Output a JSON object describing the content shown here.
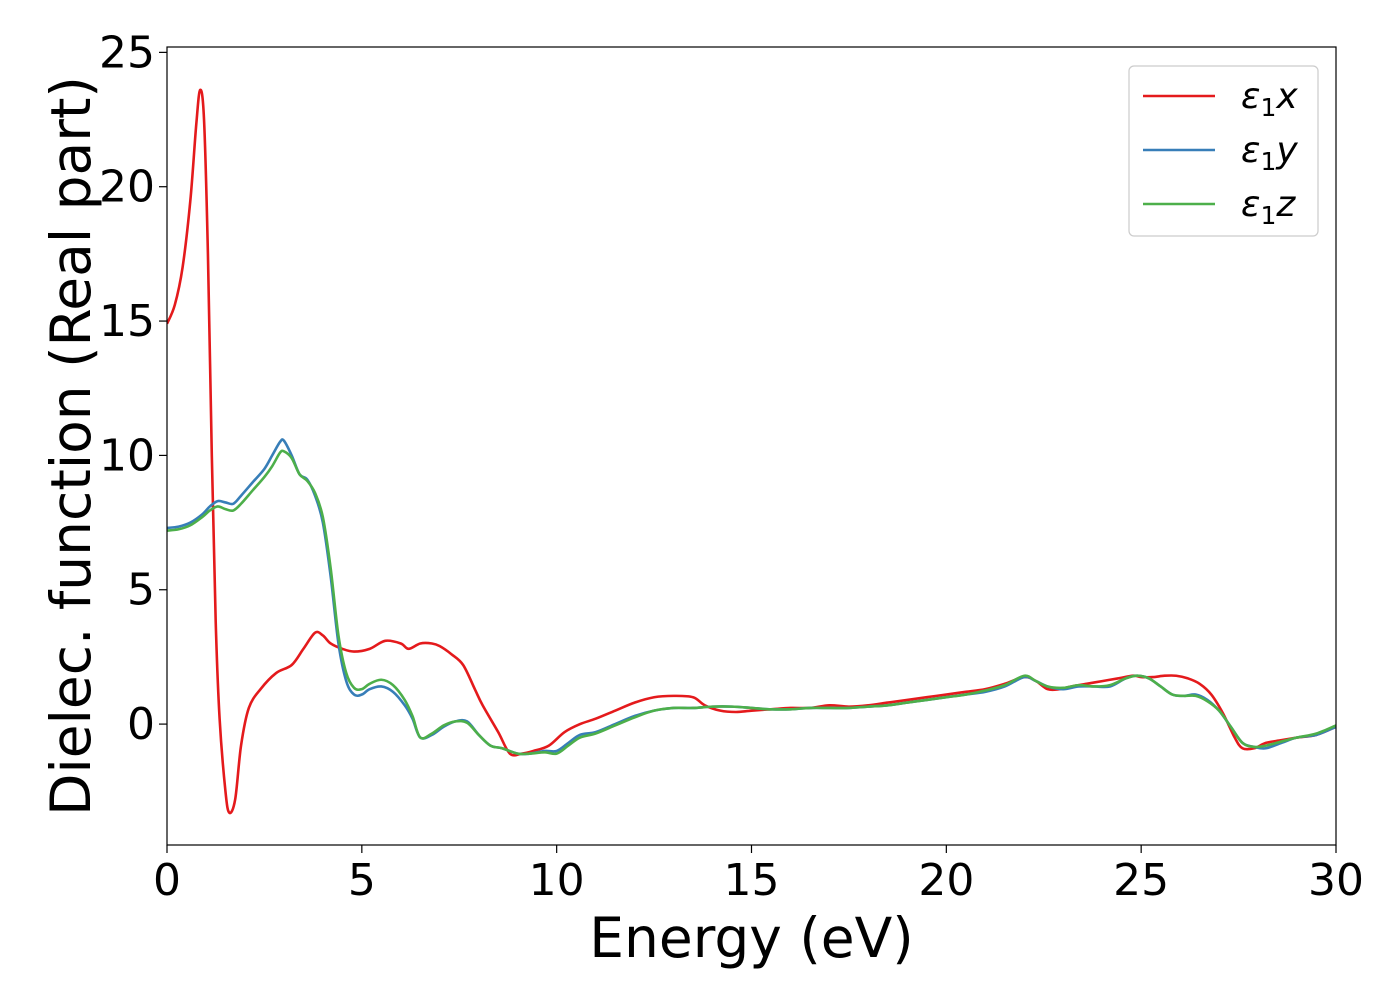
{
  "chart_data": {
    "type": "line",
    "title": "",
    "xlabel": "Energy (eV)",
    "ylabel": "Dielec. function (Real part)",
    "xlim": [
      0,
      30
    ],
    "ylim": [
      -4.5,
      25.2
    ],
    "xticks": [
      0,
      5,
      10,
      15,
      20,
      25,
      30
    ],
    "yticks": [
      0,
      5,
      10,
      15,
      20,
      25
    ],
    "grid": false,
    "legend_position": "top-right",
    "series": [
      {
        "name": "ε1x",
        "legend_base": "ε",
        "legend_sub": "1",
        "legend_suffix": "x",
        "color": "#e41a1c",
        "x": [
          0,
          0.2,
          0.4,
          0.6,
          0.75,
          0.85,
          0.95,
          1.05,
          1.15,
          1.25,
          1.35,
          1.5,
          1.6,
          1.75,
          1.9,
          2.1,
          2.4,
          2.8,
          3.2,
          3.5,
          3.8,
          4.0,
          4.2,
          4.5,
          4.8,
          5.2,
          5.6,
          6.0,
          6.2,
          6.5,
          6.8,
          7.0,
          7.3,
          7.6,
          7.9,
          8.1,
          8.5,
          8.8,
          9.1,
          9.4,
          9.8,
          10.2,
          10.6,
          11.0,
          11.5,
          12.0,
          12.5,
          13.0,
          13.5,
          13.8,
          14.2,
          14.6,
          15.0,
          15.5,
          16.0,
          16.5,
          17.0,
          17.5,
          18.0,
          18.5,
          19.0,
          19.5,
          20.0,
          20.5,
          21.0,
          21.5,
          22.0,
          22.3,
          22.6,
          22.9,
          23.2,
          23.6,
          24.0,
          24.4,
          24.8,
          25.0,
          25.3,
          25.6,
          25.9,
          26.2,
          26.5,
          26.8,
          27.1,
          27.4,
          27.6,
          27.9,
          28.2,
          28.6,
          29.0,
          29.5,
          30.0
        ],
        "y": [
          14.9,
          15.6,
          17.0,
          19.5,
          22.3,
          23.6,
          22.5,
          17.5,
          10.0,
          3.8,
          0.2,
          -2.5,
          -3.3,
          -2.8,
          -0.8,
          0.6,
          1.3,
          1.9,
          2.2,
          2.8,
          3.4,
          3.3,
          3.0,
          2.8,
          2.7,
          2.8,
          3.1,
          3.0,
          2.8,
          3.0,
          3.0,
          2.9,
          2.6,
          2.2,
          1.3,
          0.7,
          -0.3,
          -1.1,
          -1.1,
          -1.0,
          -0.8,
          -0.3,
          0.0,
          0.2,
          0.5,
          0.8,
          1.0,
          1.05,
          1.0,
          0.7,
          0.5,
          0.45,
          0.5,
          0.55,
          0.6,
          0.6,
          0.7,
          0.65,
          0.7,
          0.8,
          0.9,
          1.0,
          1.1,
          1.2,
          1.3,
          1.5,
          1.75,
          1.6,
          1.3,
          1.3,
          1.4,
          1.5,
          1.6,
          1.7,
          1.8,
          1.75,
          1.75,
          1.8,
          1.8,
          1.7,
          1.5,
          1.1,
          0.4,
          -0.5,
          -0.9,
          -0.9,
          -0.7,
          -0.6,
          -0.5,
          -0.4,
          -0.1
        ]
      },
      {
        "name": "ε1y",
        "legend_base": "ε",
        "legend_sub": "1",
        "legend_suffix": "y",
        "color": "#377eb8",
        "x": [
          0,
          0.3,
          0.6,
          0.9,
          1.1,
          1.3,
          1.5,
          1.7,
          1.9,
          2.2,
          2.5,
          2.7,
          2.9,
          3.0,
          3.2,
          3.4,
          3.6,
          3.8,
          4.0,
          4.2,
          4.4,
          4.6,
          4.8,
          5.0,
          5.2,
          5.5,
          5.8,
          6.1,
          6.3,
          6.5,
          6.8,
          7.1,
          7.4,
          7.7,
          8.0,
          8.3,
          8.6,
          9.0,
          9.3,
          9.7,
          10.0,
          10.3,
          10.6,
          11.0,
          11.5,
          12.0,
          12.5,
          13.0,
          13.5,
          14.0,
          14.5,
          15.0,
          15.5,
          16.0,
          16.5,
          17.0,
          17.5,
          18.0,
          18.5,
          19.0,
          19.5,
          20.0,
          20.5,
          21.0,
          21.5,
          22.0,
          22.3,
          22.6,
          23.0,
          23.4,
          23.8,
          24.2,
          24.6,
          24.9,
          25.2,
          25.5,
          25.8,
          26.1,
          26.4,
          26.7,
          27.0,
          27.3,
          27.6,
          27.9,
          28.2,
          28.6,
          29.0,
          29.5,
          30.0
        ],
        "y": [
          7.3,
          7.35,
          7.5,
          7.8,
          8.1,
          8.3,
          8.25,
          8.2,
          8.5,
          9.0,
          9.5,
          10.0,
          10.5,
          10.55,
          10.0,
          9.3,
          9.1,
          8.5,
          7.5,
          5.5,
          3.0,
          1.6,
          1.1,
          1.1,
          1.3,
          1.4,
          1.2,
          0.7,
          0.2,
          -0.5,
          -0.4,
          -0.1,
          0.1,
          0.1,
          -0.4,
          -0.8,
          -0.9,
          -1.1,
          -1.1,
          -1.0,
          -1.0,
          -0.7,
          -0.4,
          -0.3,
          0.0,
          0.3,
          0.5,
          0.6,
          0.6,
          0.65,
          0.65,
          0.6,
          0.55,
          0.55,
          0.6,
          0.6,
          0.6,
          0.65,
          0.7,
          0.8,
          0.9,
          1.0,
          1.1,
          1.2,
          1.4,
          1.75,
          1.6,
          1.4,
          1.3,
          1.4,
          1.4,
          1.4,
          1.7,
          1.8,
          1.7,
          1.4,
          1.1,
          1.05,
          1.1,
          0.9,
          0.5,
          -0.1,
          -0.7,
          -0.85,
          -0.9,
          -0.7,
          -0.5,
          -0.4,
          -0.1
        ]
      },
      {
        "name": "ε1z",
        "legend_base": "ε",
        "legend_sub": "1",
        "legend_suffix": "z",
        "color": "#4daf4a",
        "x": [
          0,
          0.3,
          0.6,
          0.9,
          1.1,
          1.3,
          1.5,
          1.7,
          1.9,
          2.2,
          2.5,
          2.7,
          2.9,
          3.0,
          3.2,
          3.4,
          3.6,
          3.8,
          4.0,
          4.2,
          4.4,
          4.6,
          4.8,
          5.0,
          5.2,
          5.5,
          5.8,
          6.1,
          6.3,
          6.5,
          6.8,
          7.1,
          7.4,
          7.7,
          8.0,
          8.3,
          8.6,
          9.0,
          9.3,
          9.7,
          10.0,
          10.3,
          10.6,
          11.0,
          11.5,
          12.0,
          12.5,
          13.0,
          13.5,
          14.0,
          14.5,
          15.0,
          15.5,
          16.0,
          16.5,
          17.0,
          17.5,
          18.0,
          18.5,
          19.0,
          19.5,
          20.0,
          20.5,
          21.0,
          21.5,
          22.0,
          22.3,
          22.6,
          23.0,
          23.4,
          23.8,
          24.2,
          24.6,
          24.9,
          25.2,
          25.5,
          25.8,
          26.1,
          26.4,
          26.7,
          27.0,
          27.3,
          27.6,
          27.9,
          28.2,
          28.6,
          29.0,
          29.5,
          30.0
        ],
        "y": [
          7.2,
          7.25,
          7.4,
          7.7,
          7.95,
          8.1,
          8.0,
          7.95,
          8.2,
          8.7,
          9.2,
          9.6,
          10.1,
          10.15,
          9.9,
          9.3,
          9.05,
          8.6,
          7.7,
          5.8,
          3.3,
          1.9,
          1.35,
          1.3,
          1.5,
          1.65,
          1.45,
          0.9,
          0.3,
          -0.5,
          -0.35,
          -0.05,
          0.1,
          0.05,
          -0.4,
          -0.8,
          -0.9,
          -1.1,
          -1.1,
          -1.05,
          -1.1,
          -0.8,
          -0.5,
          -0.35,
          -0.05,
          0.25,
          0.5,
          0.6,
          0.6,
          0.65,
          0.65,
          0.6,
          0.55,
          0.55,
          0.6,
          0.6,
          0.6,
          0.65,
          0.7,
          0.8,
          0.9,
          1.0,
          1.1,
          1.25,
          1.45,
          1.8,
          1.6,
          1.4,
          1.35,
          1.45,
          1.4,
          1.45,
          1.7,
          1.8,
          1.7,
          1.4,
          1.1,
          1.05,
          1.05,
          0.85,
          0.5,
          -0.1,
          -0.7,
          -0.85,
          -0.8,
          -0.65,
          -0.5,
          -0.35,
          -0.05
        ]
      }
    ]
  }
}
